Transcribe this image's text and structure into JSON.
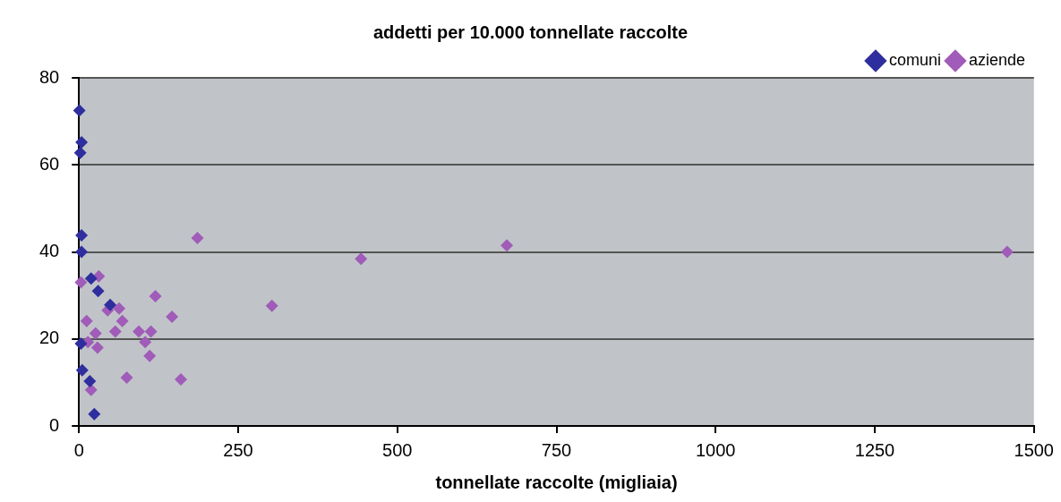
{
  "chart_data": {
    "type": "scatter",
    "title": "addetti per 10.000 tonnellate raccolte",
    "xlabel": "tonnellate raccolte (migliaia)",
    "xlim": [
      0,
      1500
    ],
    "xticks": [
      0,
      250,
      500,
      750,
      1000,
      1250,
      1500
    ],
    "ylim": [
      0,
      80
    ],
    "yticks": [
      0,
      20,
      40,
      60,
      80
    ],
    "grid": "y",
    "legend": "top right",
    "marker": "diamond",
    "series": [
      {
        "name": "comuni",
        "color": "#2e2e9e",
        "x": [
          0.5,
          4,
          2,
          4,
          4,
          19,
          30,
          49,
          3,
          5,
          17,
          24
        ],
        "values": [
          72.5,
          65.2,
          62.8,
          43.8,
          40,
          33.9,
          31,
          27.8,
          18.9,
          12.8,
          10.3,
          2.7
        ]
      },
      {
        "name": "aziende",
        "color": "#a05cb8",
        "x": [
          186,
          3,
          31,
          120,
          146,
          12,
          45,
          63,
          68,
          57,
          26,
          94,
          113,
          104,
          111,
          29,
          14,
          75,
          160,
          19,
          303,
          443,
          672,
          1458
        ],
        "values": [
          43.2,
          33,
          34.4,
          29.8,
          25.1,
          24.1,
          26.6,
          27,
          24.1,
          21.7,
          21.3,
          21.7,
          21.7,
          19.3,
          16.1,
          18,
          19.3,
          11.1,
          10.7,
          8.3,
          27.6,
          38.4,
          41.5,
          40
        ]
      }
    ]
  }
}
